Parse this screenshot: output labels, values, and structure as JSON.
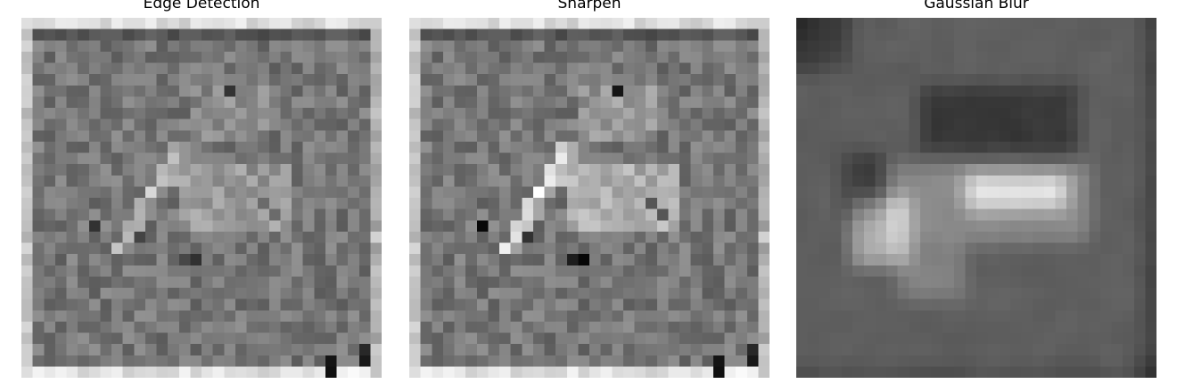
{
  "figure": {
    "panels": [
      {
        "id": "edge",
        "title": "Edge Detection",
        "image": "grayscale pixelated filtered image",
        "image_kind": "edge"
      },
      {
        "id": "sharpen",
        "title": "Sharpen",
        "image": "grayscale pixelated filtered image",
        "image_kind": "sharpen"
      },
      {
        "id": "blur",
        "title": "Gaussian Blur",
        "image": "grayscale pixelated filtered image",
        "image_kind": "blur"
      }
    ]
  }
}
